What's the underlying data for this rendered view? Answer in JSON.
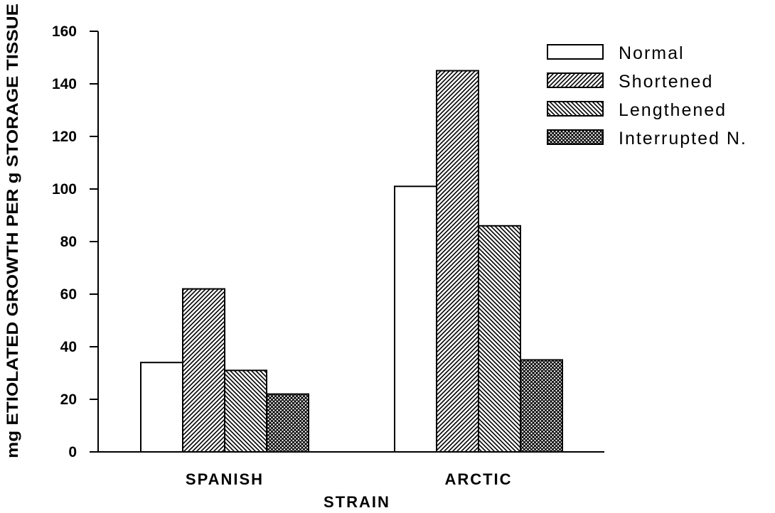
{
  "chart_data": {
    "type": "bar",
    "categories": [
      "SPANISH",
      "ARCTIC"
    ],
    "series": [
      {
        "name": "Normal",
        "values": [
          34,
          101
        ],
        "pattern": "none"
      },
      {
        "name": "Shortened",
        "values": [
          62,
          145
        ],
        "pattern": "diag-forward"
      },
      {
        "name": "Lengthened",
        "values": [
          31,
          86
        ],
        "pattern": "diag-backward"
      },
      {
        "name": "Interrupted N.",
        "values": [
          22,
          35
        ],
        "pattern": "crosshatch"
      }
    ],
    "xlabel": "STRAIN",
    "ylabel": "mg ETIOLATED GROWTH PER g STORAGE TISSUE",
    "ylim": [
      0,
      160
    ],
    "yticks": [
      0,
      20,
      40,
      60,
      80,
      100,
      120,
      140,
      160
    ],
    "grid": false,
    "legend": "top-right",
    "colors": {
      "bar_fill": "#ffffff",
      "stroke": "#000000"
    }
  }
}
